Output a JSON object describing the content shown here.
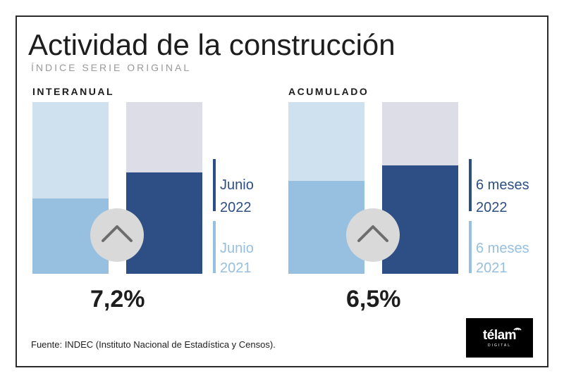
{
  "header": {
    "title": "Actividad de la construcción",
    "subtitle": "ÍNDICE SERIE ORIGINAL"
  },
  "colors": {
    "prev_background": "#cfe0ef",
    "prev_fill": "#97bfe0",
    "curr_background": "#dcdde6",
    "curr_fill": "#2d4f85",
    "arrow_circle": "#d9d9d9",
    "arrow_stroke": "#6d6d6d",
    "legend_dark": "#2d4f85",
    "legend_light": "#97bfe0"
  },
  "chart_data": [
    {
      "type": "bar",
      "section_label": "INTERANUAL",
      "highlight_value": "7,2%",
      "trend_icon": "chevron-up-icon",
      "bars": [
        {
          "label_line1": "Junio",
          "label_line2": "2021",
          "fill_fraction": 0.44
        },
        {
          "label_line1": "Junio",
          "label_line2": "2022",
          "fill_fraction": 0.59
        }
      ]
    },
    {
      "type": "bar",
      "section_label": "ACUMULADO",
      "highlight_value": "6,5%",
      "trend_icon": "chevron-up-icon",
      "bars": [
        {
          "label_line1": "6 meses",
          "label_line2": "2021",
          "fill_fraction": 0.54
        },
        {
          "label_line1": "6 meses",
          "label_line2": "2022",
          "fill_fraction": 0.63
        }
      ]
    }
  ],
  "footer": {
    "source": "Fuente: INDEC (Instituto Nacional de Estadística y Censos).",
    "logo_text": "télam",
    "logo_subtext": "DIGITAL"
  }
}
